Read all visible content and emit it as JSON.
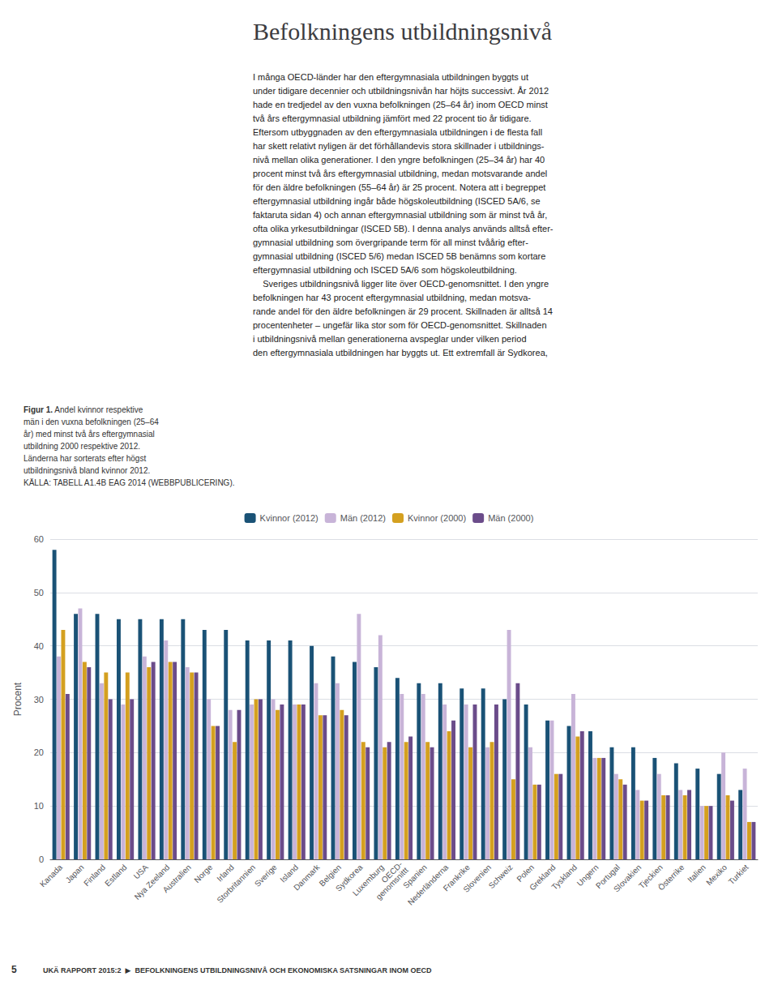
{
  "chart_data": {
    "type": "bar",
    "title": "Befolkningens utbildningsnivå",
    "ylabel": "Procent",
    "categories": [
      "Kanada",
      "Japan",
      "Finland",
      "Estland",
      "USA",
      "Nya Zeeland",
      "Australien",
      "Norge",
      "Irland",
      "Storbritannien",
      "Sverige",
      "Island",
      "Danmark",
      "Belgien",
      "Sydkorea",
      "Luxemburg",
      "OECD-\ngenomsnittt",
      "Spanien",
      "Nederländerna",
      "Frankrike",
      "Slovenien",
      "Schweiz",
      "Polen",
      "Grekland",
      "Tyskland",
      "Ungern",
      "Portugal",
      "Slovakien",
      "Tjeckien",
      "Österrike",
      "Italien",
      "Mexiko",
      "Turkiet"
    ],
    "series": [
      {
        "name": "Kvinnor (2012)",
        "color": "#1a5276",
        "values": [
          58,
          46,
          46,
          45,
          45,
          45,
          45,
          43,
          43,
          41,
          41,
          41,
          40,
          38,
          37,
          36,
          34,
          33,
          33,
          32,
          32,
          30,
          29,
          26,
          25,
          24,
          21,
          21,
          19,
          18,
          17,
          16,
          13
        ]
      },
      {
        "name": "Män (2012)",
        "color": "#c8b4d8",
        "values": [
          38,
          47,
          33,
          29,
          38,
          41,
          36,
          30,
          28,
          29,
          30,
          29,
          33,
          33,
          46,
          42,
          31,
          31,
          29,
          29,
          21,
          43,
          21,
          26,
          31,
          19,
          16,
          13,
          16,
          13,
          10,
          20,
          17
        ]
      },
      {
        "name": "Kvinnor (2000)",
        "color": "#d4a020",
        "values": [
          43,
          37,
          35,
          35,
          36,
          37,
          35,
          25,
          22,
          30,
          28,
          29,
          27,
          28,
          22,
          21,
          22,
          22,
          24,
          21,
          22,
          15,
          14,
          16,
          23,
          19,
          15,
          11,
          12,
          12,
          10,
          12,
          7
        ]
      },
      {
        "name": "Män (2000)",
        "color": "#6b4c8a",
        "values": [
          31,
          36,
          30,
          30,
          37,
          37,
          35,
          25,
          28,
          30,
          29,
          29,
          27,
          27,
          21,
          22,
          23,
          21,
          26,
          29,
          29,
          33,
          14,
          16,
          24,
          19,
          14,
          11,
          12,
          13,
          10,
          11,
          7
        ]
      }
    ],
    "ylim": [
      0,
      60
    ],
    "yticks": [
      0,
      10,
      20,
      30,
      40,
      50,
      60
    ],
    "grid": true,
    "legend": "top",
    "annotations": [
      "I många OECD-länder har den eftergymnasiala utbildningen byggts ut\nunder tidigare decennier och utbildningsnivån har höjts successivt. År 2012\nhade en tredjedel av den vuxna befolkningen (25–64 år) inom OECD minst\ntvå års eftergymnasial utbildning jämfört med 22 procent tio år tidigare.\nEftersom utbyggnaden av den eftergymnasiala utbildningen i de flesta fall\nhar skett relativt nyligen är det förhållandevis stora skillnader i utbildnings-\nnivå mellan olika generationer. I den yngre befolkningen (25–34 år) har 40\nprocent minst två års eftergymnasial utbildning, medan motsvarande andel\nför den äldre befolkningen (55–64 år) är 25 procent. Notera att i begreppet\neftergymnasial utbildning ingår både högskoleutbildning (ISCED 5A/6, se\nfaktaruta sidan 4) och annan eftergymnasial utbildning som är minst två år,\nofta olika yrkesutbildningar (ISCED 5B). I denna analys används alltså efter-\ngymnasial utbildning som övergripande term för all minst tvåårig efter-\ngymnasial utbildning (ISCED 5/6) medan ISCED 5B benämns som kortare\neftergymnasial utbildning och ISCED 5A/6 som högskoleutbildning.\n    Sveriges utbildningsnivå ligger lite över OECD-genomsnittet. I den yngre\nbefolkningen har 43 procent eftergymnasial utbildning, medan motsva-\nrande andel för den äldre befolkningen är 29 procent. Skillnaden är alltså 14\nprocentenheter – ungefär lika stor som för OECD-genomsnittet. Skillnaden\ni utbildningsnivå mellan generationerna avspeglar under vilken period\nden eftergymnasiala utbildningen har byggts ut. Ett extremfall är Sydkorea,",
      "Figur 1.",
      "Andel kvinnor respektive\nmän i den vuxna befolkningen (25–64\når) med minst två års eftergymnasial\nutbildning 2000 respektive 2012.\nLänderna har sorterats efter högst\nutbildningsnivå bland kvinnor 2012.\nKÄLLA: TABELL A1.4B EAG 2014 (WEBBPUBLICERING).",
      "5",
      "UKÄ RAPPORT 2015:2  ▶  BEFOLKNINGENS UTBILDNINGSNIVÅ OCH EKONOMISKA SATSNINGAR INOM OECD"
    ]
  }
}
